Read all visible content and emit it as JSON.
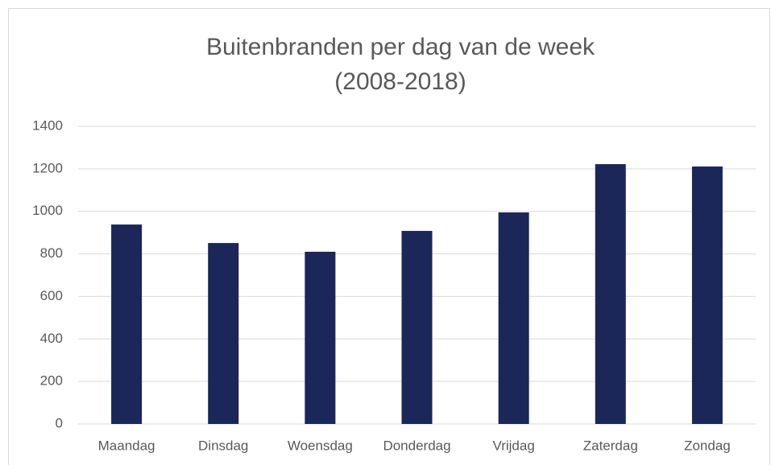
{
  "chart_data": {
    "type": "bar",
    "title": [
      "Buitenbranden per dag van de week",
      "(2008-2018)"
    ],
    "categories": [
      "Maandag",
      "Dinsdag",
      "Woensdag",
      "Donderdag",
      "Vrijdag",
      "Zaterdag",
      "Zondag"
    ],
    "values": [
      938,
      851,
      810,
      908,
      995,
      1222,
      1211
    ],
    "color": "#1b2659",
    "ylim": [
      0,
      1400
    ],
    "yticks": [
      0,
      200,
      400,
      600,
      800,
      1000,
      1200,
      1400
    ],
    "grid": true
  }
}
